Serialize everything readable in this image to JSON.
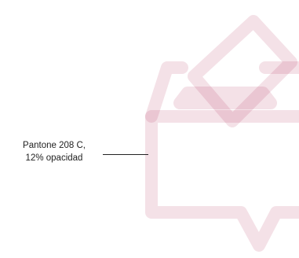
{
  "annotation": {
    "line1": "Pantone 208 C,",
    "line2": "12% opacidad"
  },
  "colors": {
    "icon": "#A6093D",
    "icon_opacity": 0.12,
    "text": "#222222"
  },
  "icon": {
    "name": "ballot-box-icon"
  }
}
